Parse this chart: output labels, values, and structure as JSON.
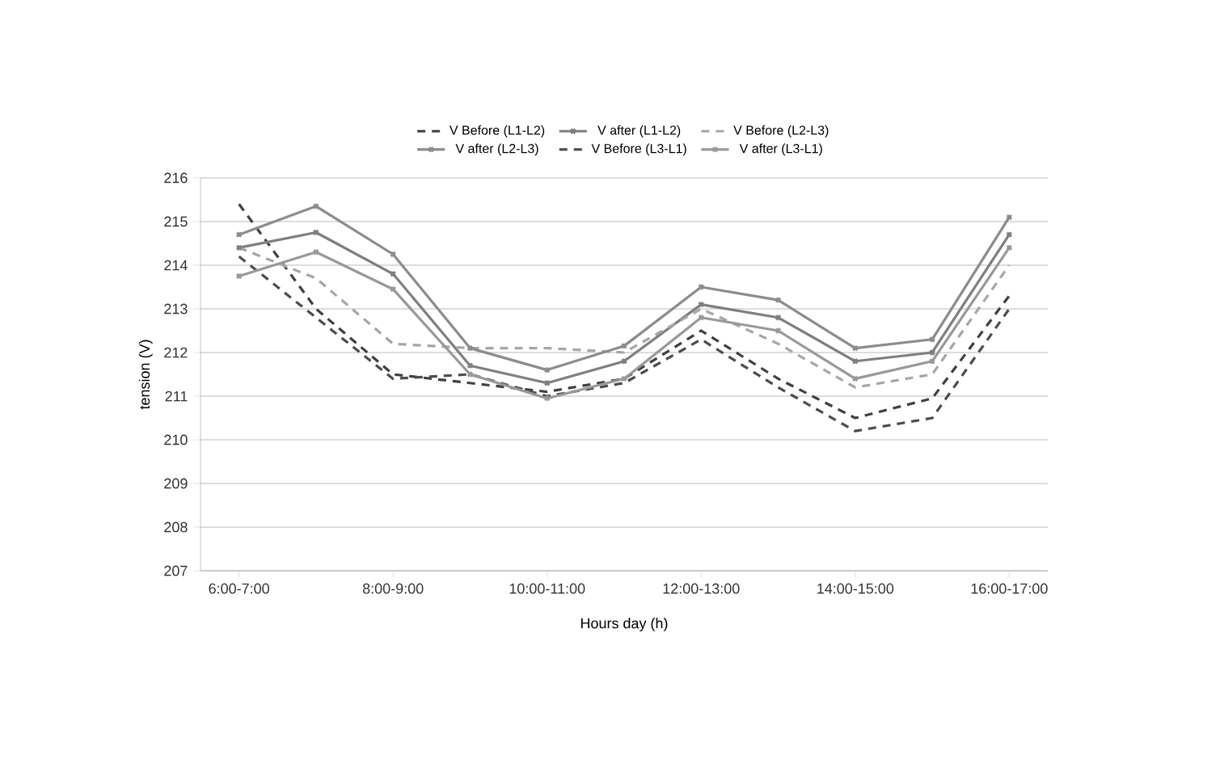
{
  "chart_data": {
    "type": "line",
    "xlabel": "Hours day  (h)",
    "ylabel": "tension (V)",
    "categories": [
      "6:00-7:00",
      null,
      "8:00-9:00",
      null,
      "10:00-11:00",
      null,
      "12:00-13:00",
      null,
      "14:00-15:00",
      null,
      "16:00-17:00"
    ],
    "ylim": [
      207,
      216
    ],
    "yticks": [
      207,
      208,
      209,
      210,
      211,
      212,
      213,
      214,
      215,
      216
    ],
    "grid": "y",
    "legend": "top",
    "series": [
      {
        "name": "V Before (L1-L2)",
        "color": "#404040",
        "line_style": "dashed",
        "marker": "none",
        "values": [
          215.4,
          213.0,
          211.5,
          211.3,
          211.1,
          211.4,
          212.5,
          211.4,
          210.5,
          210.95,
          213.3
        ]
      },
      {
        "name": "V after (L1-L2)",
        "color": "#7f7f7f",
        "line_style": "solid",
        "marker": "cross",
        "values": [
          214.4,
          214.75,
          213.8,
          211.7,
          211.3,
          211.8,
          213.1,
          212.8,
          211.8,
          212.0,
          214.7
        ]
      },
      {
        "name": "V Before (L2-L3)",
        "color": "#a6a6a6",
        "line_style": "dashed",
        "marker": "none",
        "values": [
          214.4,
          213.7,
          212.2,
          212.1,
          212.1,
          212.0,
          213.0,
          212.2,
          211.2,
          211.5,
          214.0
        ]
      },
      {
        "name": "V after (L2-L3)",
        "color": "#8c8c8c",
        "line_style": "solid",
        "marker": "cross",
        "values": [
          214.7,
          215.35,
          214.25,
          212.1,
          211.6,
          212.15,
          213.5,
          213.2,
          212.1,
          212.3,
          215.1
        ]
      },
      {
        "name": "V Before (L3-L1)",
        "color": "#4d4d4d",
        "line_style": "dashed",
        "marker": "none",
        "values": [
          214.2,
          212.8,
          211.4,
          211.5,
          211.0,
          211.3,
          212.3,
          211.2,
          210.2,
          210.5,
          213.0
        ]
      },
      {
        "name": "V after (L3-L1)",
        "color": "#999999",
        "line_style": "solid",
        "marker": "cross",
        "values": [
          213.75,
          214.3,
          213.45,
          211.5,
          210.95,
          211.4,
          212.8,
          212.5,
          211.4,
          211.8,
          214.4
        ]
      }
    ]
  }
}
